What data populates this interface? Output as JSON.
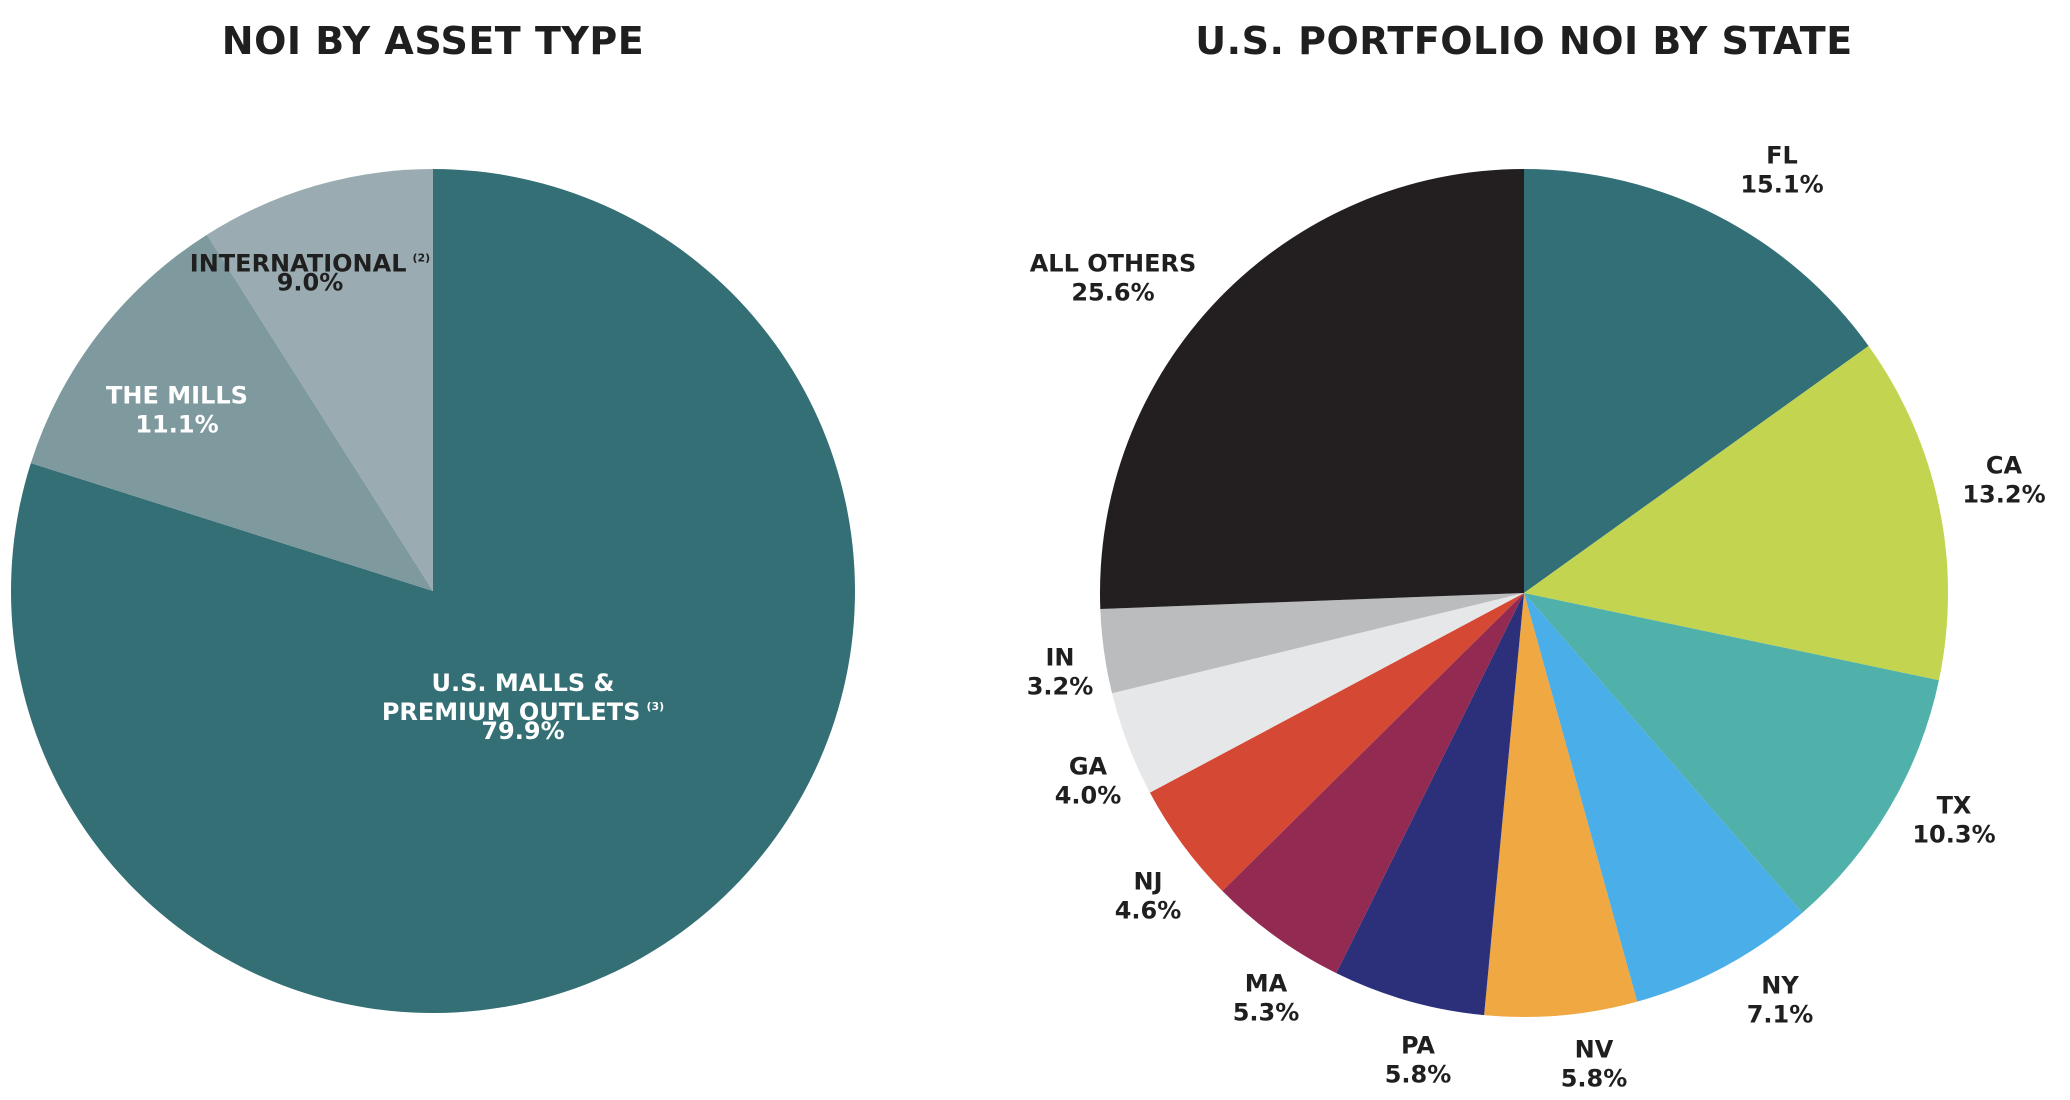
{
  "chart_data": [
    {
      "type": "pie",
      "title": "NOI BY ASSET TYPE",
      "start_angle_deg": 0,
      "direction": "clockwise",
      "slices": [
        {
          "label_lines": [
            "U.S. MALLS &",
            "PREMIUM OUTLETS"
          ],
          "footnote": "(3)",
          "value": 79.9,
          "value_label": "79.9%",
          "color": "#336f75",
          "label_color": "#ffffff"
        },
        {
          "label_lines": [
            "THE MILLS"
          ],
          "footnote": "",
          "value": 11.1,
          "value_label": "11.1%",
          "color": "#7f9a9e",
          "label_color": "#ffffff"
        },
        {
          "label_lines": [
            "INTERNATIONAL"
          ],
          "footnote": "(2)",
          "value": 9.0,
          "value_label": "9.0%",
          "color": "#9aacb1",
          "label_color": "#1f1f1f"
        }
      ]
    },
    {
      "type": "pie",
      "title": "U.S. PORTFOLIO NOI BY STATE",
      "start_angle_deg": 0,
      "direction": "clockwise",
      "slices": [
        {
          "label_lines": [
            "FL"
          ],
          "footnote": "",
          "value": 15.1,
          "value_label": "15.1%",
          "color": "#326f76",
          "label_color": "#1f1f1f"
        },
        {
          "label_lines": [
            "CA"
          ],
          "footnote": "",
          "value": 13.2,
          "value_label": "13.2%",
          "color": "#c3d450",
          "label_color": "#1f1f1f"
        },
        {
          "label_lines": [
            "TX"
          ],
          "footnote": "",
          "value": 10.3,
          "value_label": "10.3%",
          "color": "#50b0aa",
          "label_color": "#1f1f1f"
        },
        {
          "label_lines": [
            "NY"
          ],
          "footnote": "",
          "value": 7.1,
          "value_label": "7.1%",
          "color": "#4aaee8",
          "label_color": "#1f1f1f"
        },
        {
          "label_lines": [
            "NV"
          ],
          "footnote": "",
          "value": 5.8,
          "value_label": "5.8%",
          "color": "#efa842",
          "label_color": "#1f1f1f"
        },
        {
          "label_lines": [
            "PA"
          ],
          "footnote": "",
          "value": 5.8,
          "value_label": "5.8%",
          "color": "#2c307a",
          "label_color": "#1f1f1f"
        },
        {
          "label_lines": [
            "MA"
          ],
          "footnote": "",
          "value": 5.3,
          "value_label": "5.3%",
          "color": "#932a52",
          "label_color": "#1f1f1f"
        },
        {
          "label_lines": [
            "NJ"
          ],
          "footnote": "",
          "value": 4.6,
          "value_label": "4.6%",
          "color": "#d54833",
          "label_color": "#1f1f1f"
        },
        {
          "label_lines": [
            "GA"
          ],
          "footnote": "",
          "value": 4.0,
          "value_label": "4.0%",
          "color": "#e6e7e9",
          "label_color": "#1f1f1f"
        },
        {
          "label_lines": [
            "IN"
          ],
          "footnote": "",
          "value": 3.2,
          "value_label": "3.2%",
          "color": "#bbbcbe",
          "label_color": "#1f1f1f"
        },
        {
          "label_lines": [
            "ALL OTHERS"
          ],
          "footnote": "",
          "value": 25.6,
          "value_label": "25.6%",
          "color": "#231f20",
          "label_color": "#1f1f1f"
        }
      ]
    }
  ]
}
